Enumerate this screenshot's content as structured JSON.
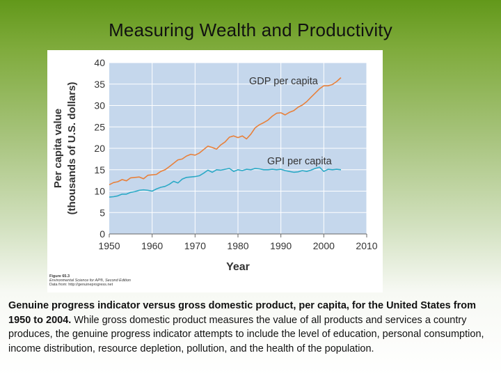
{
  "slide": {
    "title": "Measuring Wealth and Productivity",
    "caption_bold": "Genuine progress indicator versus gross domestic product, per capita, for the United States from 1950 to 2004.",
    "caption_rest": " While gross domestic product measures the value of all products and services a country produces, the genuine progress indicator attempts to include the level of education, personal consumption, income distribution, resource depletion, pollution, and the health of the population."
  },
  "figure": {
    "number": "Figure 65.3",
    "book": "Environmental Science for AP®, Second Edition",
    "source": "Data from: http://genuineprogress.net"
  },
  "colors": {
    "plot_bg": "#c5d7ec",
    "grid": "#ffffff",
    "gdp": "#e8803a",
    "gpi": "#2ba9c6",
    "text": "#333333"
  },
  "chart_data": {
    "type": "line",
    "title": "",
    "xlabel": "Year",
    "ylabel_line1": "Per capita value",
    "ylabel_line2": "(thousands of U.S. dollars)",
    "xlim": [
      1950,
      2010
    ],
    "ylim": [
      0,
      40
    ],
    "xticks": [
      1950,
      1960,
      1970,
      1980,
      1990,
      2000,
      2010
    ],
    "yticks": [
      0,
      5,
      10,
      15,
      20,
      25,
      30,
      35,
      40
    ],
    "grid": true,
    "series": [
      {
        "name": "GDP per capita",
        "color": "#e8803a",
        "x": [
          1950,
          1951,
          1952,
          1953,
          1954,
          1955,
          1956,
          1957,
          1958,
          1959,
          1960,
          1961,
          1962,
          1963,
          1964,
          1965,
          1966,
          1967,
          1968,
          1969,
          1970,
          1971,
          1972,
          1973,
          1974,
          1975,
          1976,
          1977,
          1978,
          1979,
          1980,
          1981,
          1982,
          1983,
          1984,
          1985,
          1986,
          1987,
          1988,
          1989,
          1990,
          1991,
          1992,
          1993,
          1994,
          1995,
          1996,
          1997,
          1998,
          1999,
          2000,
          2001,
          2002,
          2003,
          2004
        ],
        "y": [
          11.5,
          12.0,
          12.2,
          12.7,
          12.4,
          13.1,
          13.2,
          13.3,
          12.9,
          13.7,
          13.8,
          13.9,
          14.6,
          15.0,
          15.7,
          16.5,
          17.3,
          17.5,
          18.2,
          18.6,
          18.4,
          18.9,
          19.7,
          20.5,
          20.2,
          19.8,
          20.8,
          21.5,
          22.6,
          22.9,
          22.5,
          22.9,
          22.2,
          23.3,
          24.8,
          25.5,
          26.0,
          26.6,
          27.5,
          28.2,
          28.3,
          27.8,
          28.4,
          28.8,
          29.6,
          30.1,
          30.9,
          31.9,
          32.9,
          33.9,
          34.6,
          34.6,
          34.9,
          35.6,
          36.5
        ]
      },
      {
        "name": "GPI per capita",
        "color": "#2ba9c6",
        "x": [
          1950,
          1951,
          1952,
          1953,
          1954,
          1955,
          1956,
          1957,
          1958,
          1959,
          1960,
          1961,
          1962,
          1963,
          1964,
          1965,
          1966,
          1967,
          1968,
          1969,
          1970,
          1971,
          1972,
          1973,
          1974,
          1975,
          1976,
          1977,
          1978,
          1979,
          1980,
          1981,
          1982,
          1983,
          1984,
          1985,
          1986,
          1987,
          1988,
          1989,
          1990,
          1991,
          1992,
          1993,
          1994,
          1995,
          1996,
          1997,
          1998,
          1999,
          2000,
          2001,
          2002,
          2003,
          2004
        ],
        "y": [
          8.6,
          8.7,
          8.9,
          9.3,
          9.3,
          9.7,
          9.9,
          10.2,
          10.3,
          10.2,
          10.0,
          10.5,
          10.9,
          11.1,
          11.6,
          12.3,
          11.9,
          12.8,
          13.2,
          13.3,
          13.4,
          13.6,
          14.2,
          14.9,
          14.4,
          15.0,
          14.9,
          15.1,
          15.3,
          14.6,
          15.0,
          14.8,
          15.1,
          15.0,
          15.3,
          15.2,
          15.0,
          15.0,
          15.1,
          15.0,
          15.1,
          14.8,
          14.6,
          14.4,
          14.5,
          14.8,
          14.6,
          14.9,
          15.3,
          15.6,
          14.6,
          15.1,
          15.0,
          15.1,
          15.0
        ]
      }
    ]
  }
}
